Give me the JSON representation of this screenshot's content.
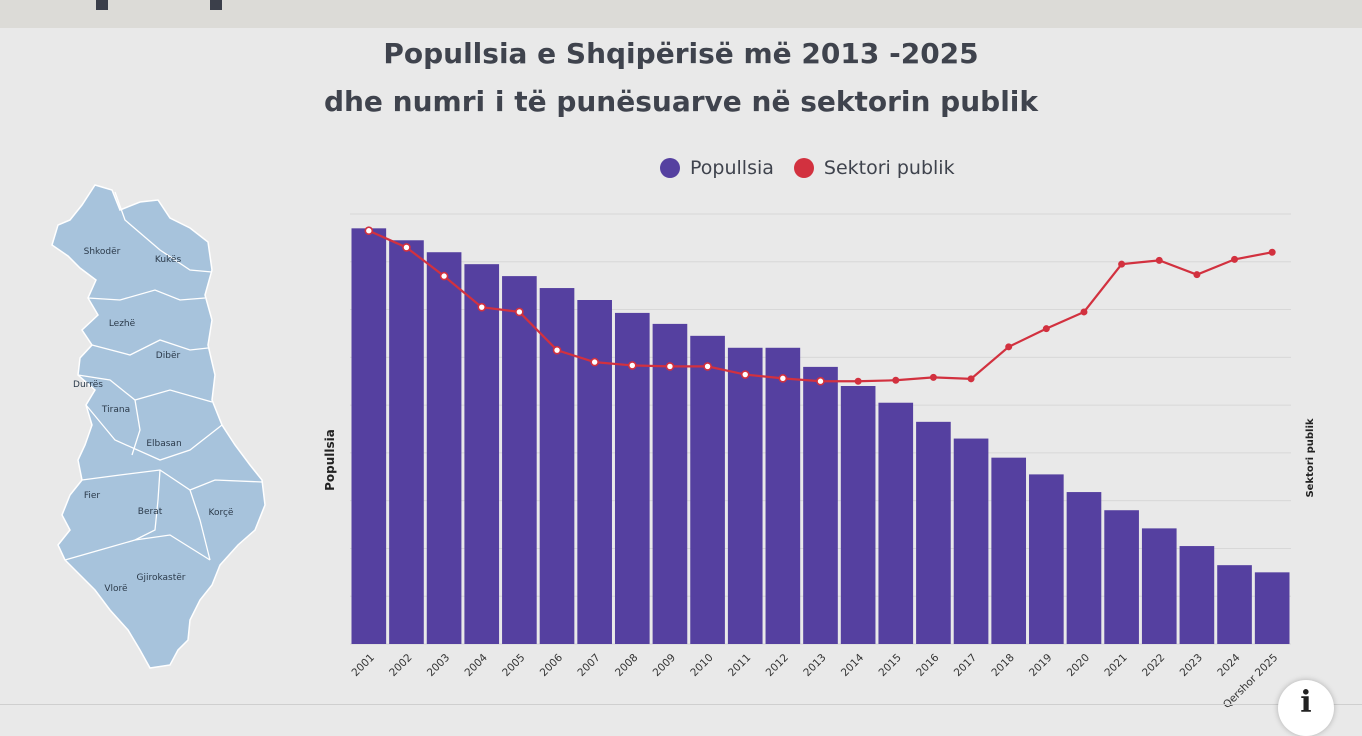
{
  "title_line1": "Popullsia e Shqipërisë më 2013 -2025",
  "title_line2": "dhe numri i të punësuarve në sektorin publik",
  "legend": [
    {
      "label": "Popullsia",
      "color": "#5540a0"
    },
    {
      "label": "Sektori publik",
      "color": "#d2313f"
    }
  ],
  "map_regions": [
    "Shkodër",
    "Kukës",
    "Lezhë",
    "Dibër",
    "Durrës",
    "Tirana",
    "Elbasan",
    "Fier",
    "Berat",
    "Korçë",
    "Gjirokastër",
    "Vlorë"
  ],
  "info_icon": "i",
  "chart_data": {
    "type": "bar",
    "ylabel": "Popullsia",
    "y2label": "Sektori publik",
    "categories": [
      "2001",
      "2002",
      "2003",
      "2004",
      "2005",
      "2006",
      "2007",
      "2008",
      "2009",
      "2010",
      "2011",
      "2012",
      "2013",
      "2014",
      "2015",
      "2016",
      "2017",
      "2018",
      "2019",
      "2020",
      "2021",
      "2022",
      "2023",
      "2024",
      "Qershor 2025"
    ],
    "series": [
      {
        "name": "Popullsia",
        "type": "bar",
        "axis": "left",
        "color": "#5540a0",
        "values": [
          87,
          84.5,
          82,
          79.5,
          77,
          74.5,
          72,
          69.3,
          67,
          64.5,
          62,
          62,
          58,
          54,
          50.5,
          46.5,
          43,
          39,
          35.5,
          31.8,
          28,
          24.2,
          20.5,
          16.5,
          15
        ]
      },
      {
        "name": "Sektori publik",
        "type": "line",
        "axis": "right",
        "color": "#d2313f",
        "values": [
          86.5,
          83,
          77,
          70.5,
          69.5,
          61.5,
          59,
          58.3,
          58.1,
          58.1,
          56.4,
          55.6,
          55,
          55,
          55.2,
          55.8,
          55.5,
          62.2,
          66,
          69.5,
          79.5,
          80.3,
          77.3,
          80.5,
          82
        ]
      }
    ],
    "ylim": [
      0,
      90
    ],
    "y2lim": [
      0,
      90
    ],
    "grid": true,
    "legend_position": "top"
  }
}
